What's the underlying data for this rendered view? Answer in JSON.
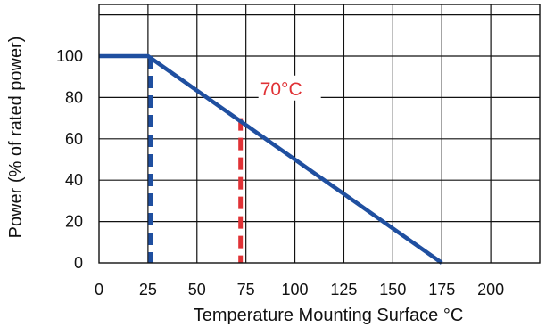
{
  "chart_data": {
    "type": "line",
    "title": "",
    "xlabel": "Temperature Mounting Surface °C",
    "ylabel": "Power (% of rated power)",
    "xlim": [
      0,
      225
    ],
    "ylim": [
      0,
      125
    ],
    "x_ticks": [
      "0",
      "25",
      "50",
      "75",
      "100",
      "125",
      "150",
      "175",
      "200"
    ],
    "y_ticks": [
      "0",
      "20",
      "40",
      "60",
      "80",
      "100"
    ],
    "grid": true,
    "series": [
      {
        "color": "#1f4fa0",
        "points": [
          [
            0,
            100
          ],
          [
            25,
            100
          ],
          [
            175,
            0
          ]
        ]
      }
    ],
    "markers": [
      {
        "x": 25,
        "y_top": 100,
        "color": "#1f4fa0",
        "style": "dashed"
      },
      {
        "x": 70,
        "y_top": 70,
        "color": "#e03236",
        "style": "dashed",
        "label": "70°C"
      }
    ]
  }
}
